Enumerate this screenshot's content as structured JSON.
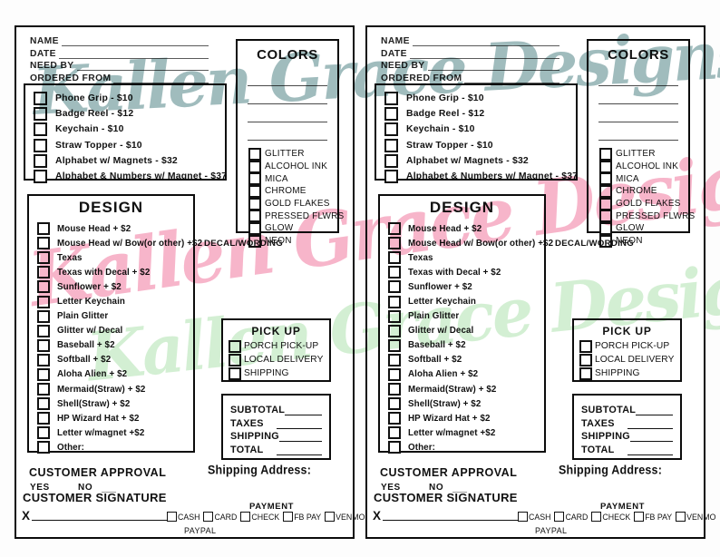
{
  "watermarks": {
    "teal": {
      "text": "Kallen Grace Designs",
      "color": "#8badaf"
    },
    "pink": {
      "text": "Kallen Grace Designs",
      "color": "#f6a8c1"
    },
    "green": {
      "text": "Kallen Grace Designs",
      "color": "#cfeecf"
    }
  },
  "form": {
    "header_fields": [
      "NAME",
      "DATE",
      "NEED BY",
      "ORDERED FROM"
    ],
    "products": {
      "items": [
        "Phone Grip - $10",
        "Badge Reel - $12",
        "Keychain - $10",
        "Straw Topper - $10",
        "Alphabet w/ Magnets - $32",
        "Alphabet & Numbers w/ Magnet - $37"
      ]
    },
    "colors_box": {
      "title": "COLORS",
      "options": [
        "GLITTER",
        "ALCOHOL INK",
        "MICA",
        "CHROME",
        "GOLD FLAKES",
        "PRESSED FLWRS",
        "GLOW",
        "NEON"
      ]
    },
    "design": {
      "title": "DESIGN",
      "items": [
        "Mouse Head + $2",
        "Mouse Head w/ Bow(or other) +$2",
        "Texas",
        "Texas with Decal + $2",
        "Sunflower + $2",
        "Letter Keychain",
        "Plain Glitter",
        "Glitter w/ Decal",
        "Baseball + $2",
        "Softball + $2",
        "Aloha Alien + $2",
        "Mermaid(Straw) + $2",
        "Shell(Straw) + $2",
        "HP Wizard Hat + $2",
        "Letter w/magnet +$2",
        "Other:"
      ]
    },
    "decal_label": "DECAL/WORDING",
    "pickup": {
      "title": "PICK UP",
      "options": [
        "PORCH PICK-UP",
        "LOCAL DELIVERY",
        "SHIPPING"
      ]
    },
    "totals": {
      "rows": [
        "SUBTOTAL",
        "TAXES",
        "SHIPPING",
        "TOTAL"
      ]
    },
    "approval": {
      "title": "CUSTOMER APPROVAL",
      "yes": "YES",
      "no": "NO"
    },
    "signature": {
      "title": "CUSTOMER SIGNATURE",
      "x_label": "X"
    },
    "shipping_address_label": "Shipping Address:",
    "payment": {
      "title": "PAYMENT",
      "options": [
        "CASH",
        "CARD",
        "CHECK",
        "FB PAY",
        "VENMO"
      ],
      "overflow_option": "PAYPAL"
    }
  }
}
